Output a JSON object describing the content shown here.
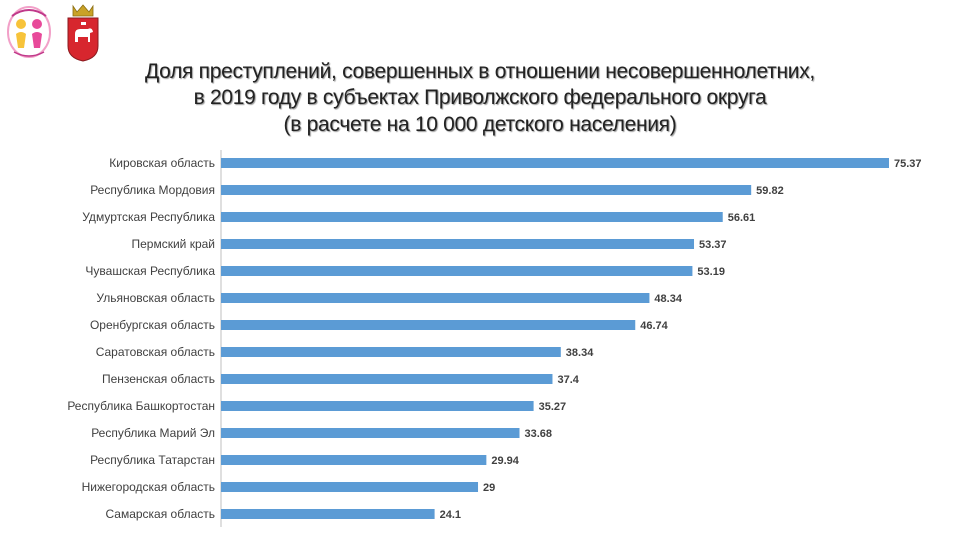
{
  "header": {
    "title_line1": "Доля преступлений, совершенных в отношении несовершеннолетних,",
    "title_line2": "в 2019 году в субъектах Приволжского федерального округа",
    "title_line3": "(в расчете на 10 000 детского населения)"
  },
  "logos": {
    "left_logo_icon": "children-emblem-icon",
    "right_logo_icon": "perm-krai-coat-of-arms-icon"
  },
  "colors": {
    "bar": "#5b9bd5",
    "axis": "#bfbfbf"
  },
  "chart_data": {
    "type": "bar",
    "orientation": "horizontal",
    "title": "Доля преступлений, совершенных в отношении несовершеннолетних, в 2019 году в субъектах Приволжского федерального округа (в расчете на 10 000 детского населения)",
    "categories": [
      "Кировская область",
      "Республика Мордовия",
      "Удмуртская Республика",
      "Пермский край",
      "Чувашская Республика",
      "Ульяновская область",
      "Оренбургская область",
      "Саратовская область",
      "Пензенская область",
      "Республика Башкортостан",
      "Республика Марий Эл",
      "Республика Татарстан",
      "Нижегородская область",
      "Самарская область"
    ],
    "values": [
      75.37,
      59.82,
      56.61,
      53.37,
      53.19,
      48.34,
      46.74,
      38.34,
      37.4,
      35.27,
      33.68,
      29.94,
      29,
      24.1
    ],
    "value_labels": [
      "75.37",
      "59.82",
      "56.61",
      "53.37",
      "53.19",
      "48.34",
      "46.74",
      "38.34",
      "37.4",
      "35.27",
      "33.68",
      "29.94",
      "29",
      "24.1"
    ],
    "xlim": [
      0,
      85
    ],
    "grid": false,
    "legend": "none"
  }
}
